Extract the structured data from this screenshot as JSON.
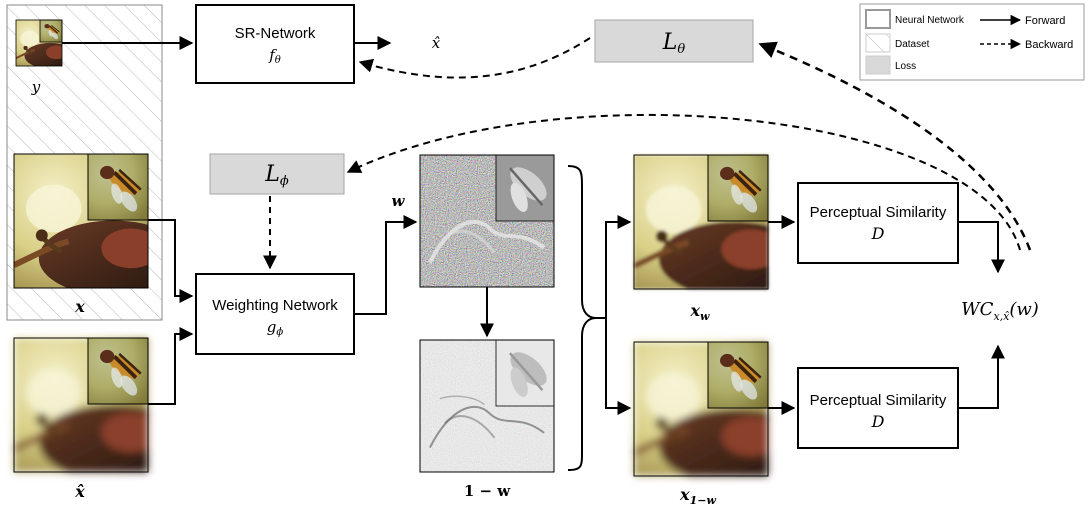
{
  "legend": {
    "neural_network": "Neural Network",
    "dataset": "Dataset",
    "loss": "Loss",
    "forward": "Forward",
    "backward": "Backward"
  },
  "boxes": {
    "sr_network": {
      "title": "SR-Network",
      "symbol": "f",
      "sub": "θ"
    },
    "weighting_network": {
      "title": "Weighting Network",
      "symbol": "g",
      "sub": "ϕ"
    },
    "perceptual_top": {
      "title": "Perceptual Similarity",
      "symbol": "D"
    },
    "perceptual_bottom": {
      "title": "Perceptual Similarity",
      "symbol": "D"
    }
  },
  "losses": {
    "l_theta": {
      "symbol": "L",
      "sub": "θ"
    },
    "l_phi": {
      "symbol": "L",
      "sub": "ϕ"
    }
  },
  "labels": {
    "y": "y",
    "x": "x",
    "x_hat": "x̂",
    "x_hat_out": "x̂",
    "w": "w",
    "one_minus_w": "1 − w",
    "x_w": {
      "symbol": "x",
      "sub": "w"
    },
    "x_1mw": {
      "symbol": "x",
      "sub": "1−w"
    },
    "wc": {
      "symbol": "WC",
      "sub": "x,x̂",
      "arg": "(w)"
    }
  },
  "colors": {
    "loss_fill": "#d9d9d9",
    "stroke": "#000000",
    "hatch": "#b0b0b0"
  }
}
